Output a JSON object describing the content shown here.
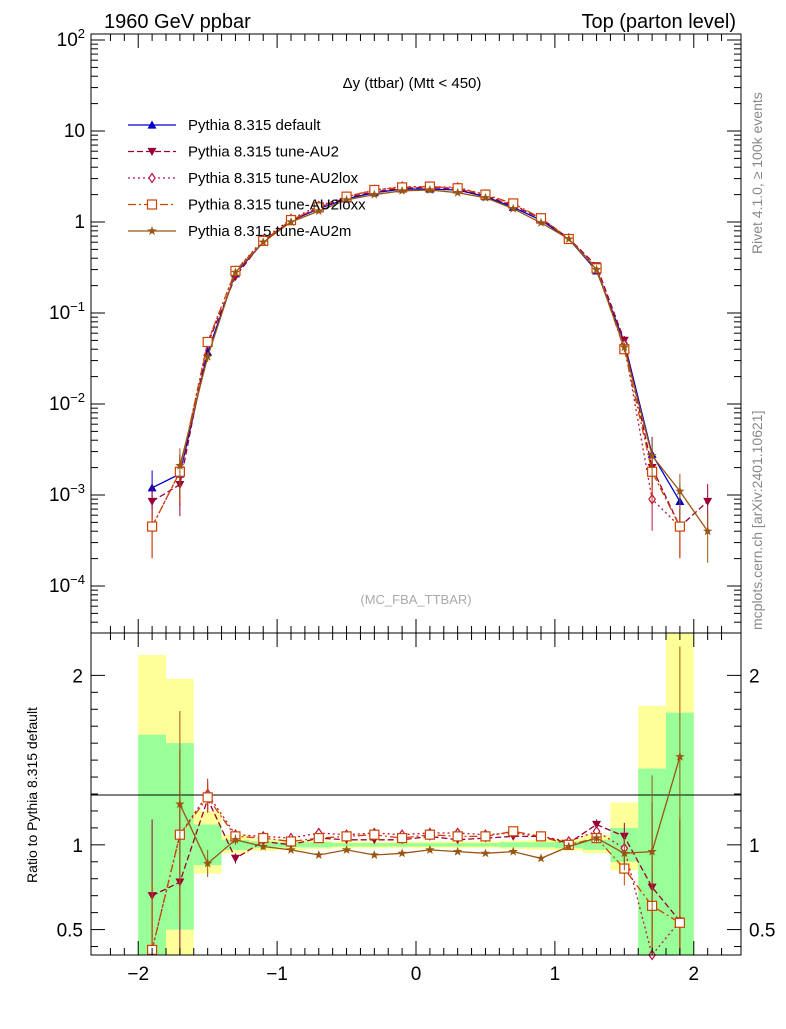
{
  "header": {
    "left": "1960 GeV ppbar",
    "right": "Top (parton level)"
  },
  "side": {
    "rivet": "Rivet 4.1.0, ≥ 100k events",
    "mcplots": "mcplots.cern.ch [arXiv:2401.10621]"
  },
  "colors": {
    "band_inner": "#99ff99",
    "band_outer": "#ffff99"
  },
  "chart_data": [
    {
      "type": "line",
      "title": "Δy (ttbar) (Mtt < 450)",
      "watermark": "(MC_FBA_TTBAR)",
      "xlim": [
        -2.34,
        2.34
      ],
      "ylim": [
        3e-05,
        100
      ],
      "yscale": "log",
      "ytick_labels": [
        "10^-4",
        "10^-3",
        "10^-2",
        "10^-1",
        "1",
        "10",
        "10^2"
      ],
      "x": [
        -1.9,
        -1.7,
        -1.5,
        -1.3,
        -1.1,
        -0.9,
        -0.7,
        -0.5,
        -0.3,
        -0.1,
        0.1,
        0.3,
        0.5,
        0.7,
        0.9,
        1.1,
        1.3,
        1.5,
        1.7,
        1.9,
        2.1
      ],
      "series": [
        {
          "name": "Pythia 8.315 default",
          "color": "#0000cc",
          "dash": "",
          "marker": "triangle",
          "values": [
            0.0012,
            0.0017,
            0.037,
            0.27,
            0.6,
            1.03,
            1.4,
            1.8,
            2.1,
            2.3,
            2.3,
            2.25,
            1.9,
            1.45,
            1.05,
            0.65,
            0.29,
            0.048,
            0.0028,
            0.00085,
            null
          ]
        },
        {
          "name": "Pythia 8.315 tune-AU2",
          "color": "#990033",
          "dash": "6,3",
          "marker": "triangle-down",
          "values": [
            0.00085,
            0.0013,
            0.046,
            0.25,
            0.62,
            1.02,
            1.45,
            1.85,
            2.15,
            2.35,
            2.4,
            2.3,
            1.95,
            1.5,
            1.1,
            0.66,
            0.33,
            0.05,
            0.002,
            0.00045,
            0.00085
          ]
        },
        {
          "name": "Pythia 8.315 tune-AU2lox",
          "color": "#bb1144",
          "dash": "2,3",
          "marker": "diamond",
          "values": [
            0.00045,
            0.0018,
            0.048,
            0.29,
            0.64,
            1.08,
            1.5,
            1.9,
            2.25,
            2.45,
            2.45,
            2.4,
            2.0,
            1.55,
            1.1,
            0.66,
            0.31,
            0.045,
            0.0009,
            0.00045,
            null
          ]
        },
        {
          "name": "Pythia 8.315 tune-AU2loxx",
          "color": "#cc4400",
          "dash": "8,3,2,3",
          "marker": "square",
          "values": [
            0.00045,
            0.0018,
            0.048,
            0.29,
            0.62,
            1.05,
            1.45,
            1.9,
            2.25,
            2.4,
            2.45,
            2.35,
            2.0,
            1.6,
            1.1,
            0.65,
            0.31,
            0.04,
            0.0018,
            0.00045,
            null
          ]
        },
        {
          "name": "Pythia 8.315 tune-AU2m",
          "color": "#995511",
          "dash": "",
          "marker": "star",
          "values": [
            null,
            0.0021,
            0.033,
            0.28,
            0.6,
            1.0,
            1.32,
            1.75,
            2.0,
            2.2,
            2.25,
            2.1,
            1.85,
            1.4,
            0.98,
            0.65,
            0.3,
            0.042,
            0.0027,
            0.0011,
            0.0004
          ]
        }
      ]
    },
    {
      "type": "line",
      "ylabel": "Ratio to Pythia 8.315 default",
      "xlim": [
        -2.34,
        2.34
      ],
      "ylim": [
        0.35,
        2.25
      ],
      "xtick_labels": [
        "−2",
        "−1",
        "0",
        "1",
        "2"
      ],
      "ytick_labels": [
        "0.5",
        "1",
        "2"
      ],
      "bands": {
        "edges": [
          -2.0,
          -1.8,
          -1.6,
          -1.4,
          -1.2,
          -1.0,
          -0.8,
          -0.6,
          -0.4,
          -0.2,
          0.0,
          0.2,
          0.4,
          0.6,
          0.8,
          1.0,
          1.2,
          1.4,
          1.6,
          1.8,
          2.0
        ],
        "inner_lo": [
          0.35,
          0.5,
          0.88,
          0.97,
          0.98,
          0.985,
          0.985,
          0.99,
          0.99,
          0.99,
          0.99,
          0.99,
          0.99,
          0.985,
          0.985,
          0.98,
          0.97,
          0.9,
          0.35,
          0.35
        ],
        "inner_hi": [
          1.65,
          1.6,
          1.12,
          1.03,
          1.02,
          1.015,
          1.015,
          1.01,
          1.01,
          1.01,
          1.01,
          1.01,
          1.01,
          1.015,
          1.015,
          1.02,
          1.03,
          1.1,
          1.45,
          1.78
        ],
        "outer_lo": [
          0.35,
          0.35,
          0.83,
          0.95,
          0.965,
          0.97,
          0.975,
          0.98,
          0.98,
          0.98,
          0.98,
          0.98,
          0.98,
          0.975,
          0.97,
          0.965,
          0.95,
          0.85,
          0.35,
          0.35
        ],
        "outer_hi": [
          2.12,
          1.98,
          1.2,
          1.06,
          1.035,
          1.03,
          1.025,
          1.02,
          1.02,
          1.02,
          1.02,
          1.02,
          1.02,
          1.025,
          1.03,
          1.035,
          1.06,
          1.25,
          1.82,
          2.25
        ]
      },
      "series": [
        {
          "name": "Pythia 8.315 tune-AU2",
          "color": "#990033",
          "dash": "6,3",
          "marker": "triangle-down",
          "values": [
            0.7,
            0.78,
            1.27,
            0.92,
            1.02,
            1.0,
            1.04,
            1.03,
            1.03,
            1.03,
            1.05,
            1.03,
            1.04,
            1.05,
            1.05,
            1.01,
            1.12,
            1.05,
            0.75,
            0.55,
            null
          ],
          "err": [
            0.45,
            0.6,
            0.08,
            0.03,
            0.02,
            0.01,
            0.01,
            0.01,
            0.01,
            0.01,
            0.01,
            0.01,
            0.01,
            0.01,
            0.01,
            0.02,
            0.03,
            0.08,
            0.5,
            0.6,
            null
          ]
        },
        {
          "name": "Pythia 8.315 tune-AU2lox",
          "color": "#bb1144",
          "dash": "2,3",
          "marker": "diamond",
          "values": [
            0.38,
            1.06,
            1.3,
            1.06,
            1.05,
            1.04,
            1.07,
            1.06,
            1.07,
            1.06,
            1.07,
            1.07,
            1.06,
            1.07,
            1.05,
            1.02,
            1.08,
            0.98,
            0.35,
            0.55,
            null
          ],
          "err": [
            0.4,
            0.5,
            0.09,
            0.03,
            0.02,
            0.01,
            0.01,
            0.01,
            0.01,
            0.01,
            0.01,
            0.01,
            0.01,
            0.01,
            0.01,
            0.02,
            0.03,
            0.1,
            0.5,
            0.6,
            null
          ]
        },
        {
          "name": "Pythia 8.315 tune-AU2loxx",
          "color": "#cc4400",
          "dash": "8,3,2,3",
          "marker": "square",
          "values": [
            0.38,
            1.06,
            1.28,
            1.05,
            1.04,
            1.02,
            1.04,
            1.05,
            1.06,
            1.04,
            1.06,
            1.05,
            1.05,
            1.08,
            1.05,
            1.0,
            1.04,
            0.86,
            0.64,
            0.54,
            null
          ],
          "err": [
            0.4,
            0.5,
            0.09,
            0.03,
            0.02,
            0.01,
            0.01,
            0.01,
            0.01,
            0.01,
            0.01,
            0.01,
            0.01,
            0.01,
            0.01,
            0.02,
            0.03,
            0.1,
            0.5,
            0.6,
            null
          ]
        },
        {
          "name": "Pythia 8.315 tune-AU2m",
          "color": "#995511",
          "dash": "",
          "marker": "star",
          "values": [
            null,
            1.24,
            0.89,
            1.03,
            0.99,
            0.97,
            0.94,
            0.97,
            0.94,
            0.95,
            0.97,
            0.96,
            0.95,
            0.96,
            0.92,
            0.99,
            1.04,
            0.95,
            0.96,
            1.52,
            null
          ],
          "err": [
            null,
            0.55,
            0.08,
            0.03,
            0.02,
            0.01,
            0.01,
            0.01,
            0.01,
            0.01,
            0.01,
            0.01,
            0.01,
            0.01,
            0.01,
            0.02,
            0.03,
            0.1,
            0.45,
            0.65,
            null
          ]
        }
      ]
    }
  ]
}
